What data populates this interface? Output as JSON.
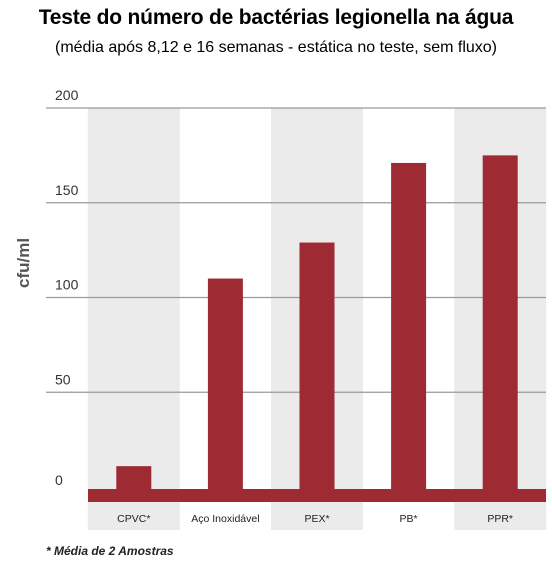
{
  "chart_data": {
    "type": "bar",
    "title": "Teste do número de bactérias legionella na água",
    "subtitle": "(média após 8,12 e 16 semanas - estática no teste, sem fluxo)",
    "ylabel": "cfu/ml",
    "xlabel": "",
    "categories": [
      "CPVC*",
      "Aço Inoxidável",
      "PEX*",
      "PB*",
      "PPR*"
    ],
    "values": [
      11,
      110,
      129,
      171,
      175
    ],
    "ylim": [
      0,
      200
    ],
    "yticks": [
      0,
      50,
      100,
      150,
      200
    ],
    "grid": true,
    "colors": {
      "bar": "#9e2a33",
      "band": "#ebebeb",
      "gridline": "#9a9a9a",
      "baseline": "#9e2a33"
    },
    "footnote": "* Média de 2 Amostras"
  }
}
